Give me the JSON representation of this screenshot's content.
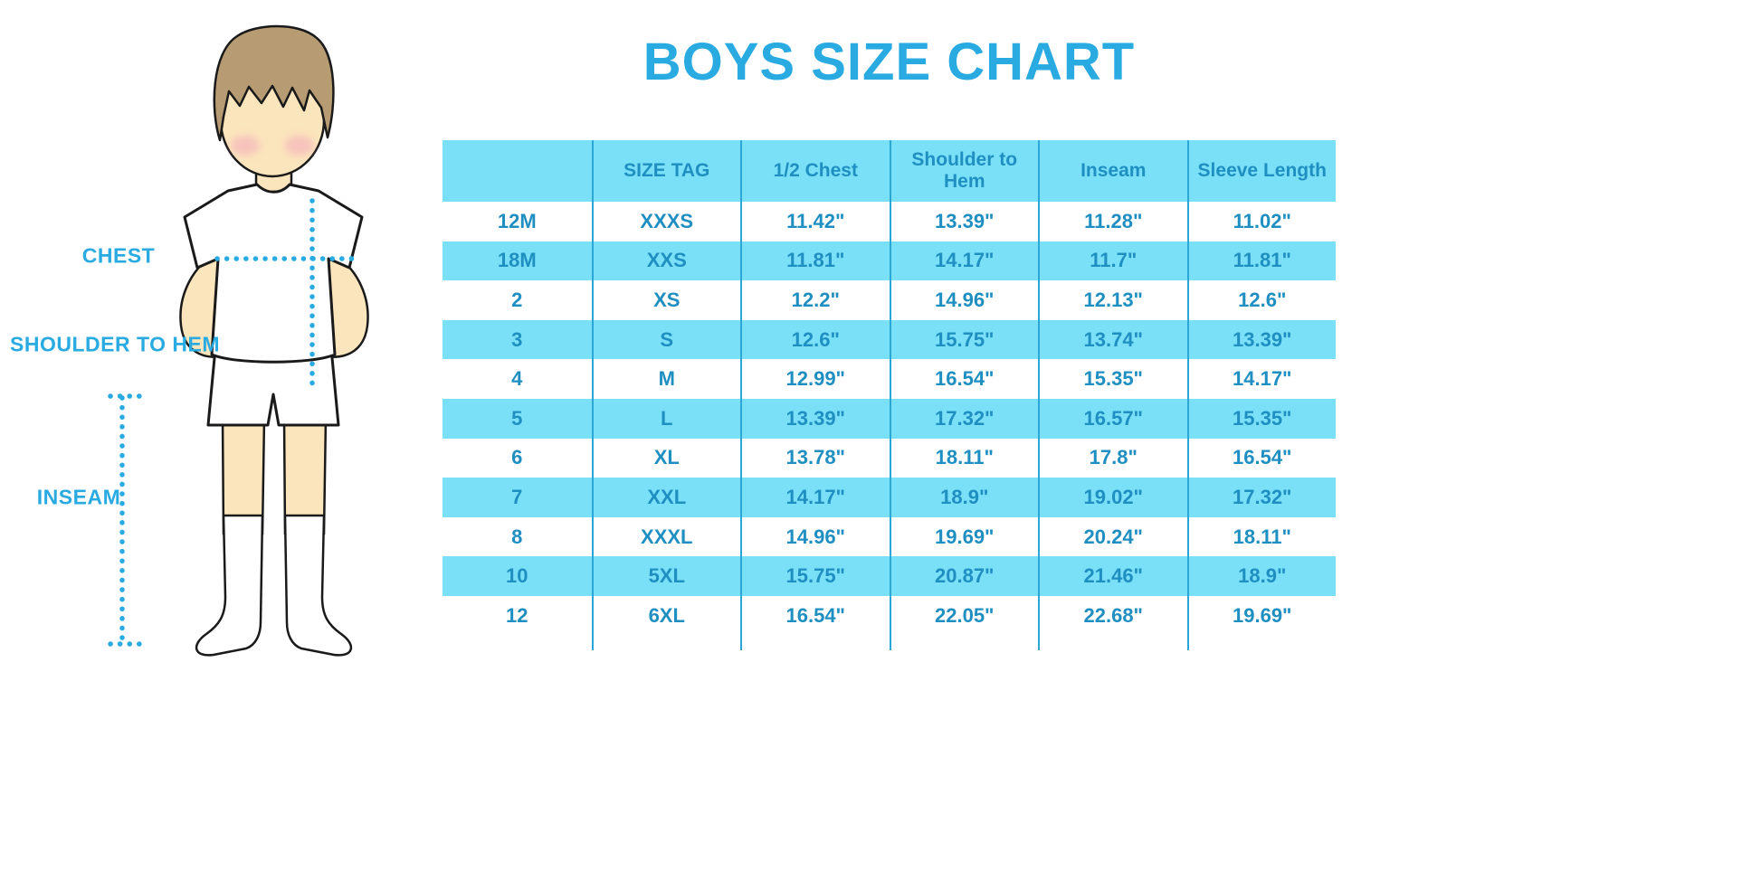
{
  "title": "BOYS SIZE CHART",
  "illustration": {
    "chest_label": "CHEST",
    "shoulder_to_hem_label": "SHOULDER TO HEM",
    "inseam_label": "INSEAM"
  },
  "colors": {
    "accent_blue": "#29ABE2",
    "table_text_blue": "#1F8FC2",
    "stripe_cyan": "#79E0F7",
    "separator_blue": "#2AA7D7",
    "skin": "#FBE5BC",
    "hair": "#B79B73",
    "blush": "#F3A9BC"
  },
  "chart_data": {
    "type": "table",
    "title": "BOYS SIZE CHART",
    "columns": [
      "",
      "SIZE TAG",
      "1/2 Chest",
      "Shoulder to Hem",
      "Inseam",
      "Sleeve Length"
    ],
    "rows": [
      [
        "12M",
        "XXXS",
        "11.42\"",
        "13.39\"",
        "11.28\"",
        "11.02\""
      ],
      [
        "18M",
        "XXS",
        "11.81\"",
        "14.17\"",
        "11.7\"",
        "11.81\""
      ],
      [
        "2",
        "XS",
        "12.2\"",
        "14.96\"",
        "12.13\"",
        "12.6\""
      ],
      [
        "3",
        "S",
        "12.6\"",
        "15.75\"",
        "13.74\"",
        "13.39\""
      ],
      [
        "4",
        "M",
        "12.99\"",
        "16.54\"",
        "15.35\"",
        "14.17\""
      ],
      [
        "5",
        "L",
        "13.39\"",
        "17.32\"",
        "16.57\"",
        "15.35\""
      ],
      [
        "6",
        "XL",
        "13.78\"",
        "18.11\"",
        "17.8\"",
        "16.54\""
      ],
      [
        "7",
        "XXL",
        "14.17\"",
        "18.9\"",
        "19.02\"",
        "17.32\""
      ],
      [
        "8",
        "XXXL",
        "14.96\"",
        "19.69\"",
        "20.24\"",
        "18.11\""
      ],
      [
        "10",
        "5XL",
        "15.75\"",
        "20.87\"",
        "21.46\"",
        "18.9\""
      ],
      [
        "12",
        "6XL",
        "16.54\"",
        "22.05\"",
        "22.68\"",
        "19.69\""
      ]
    ]
  }
}
